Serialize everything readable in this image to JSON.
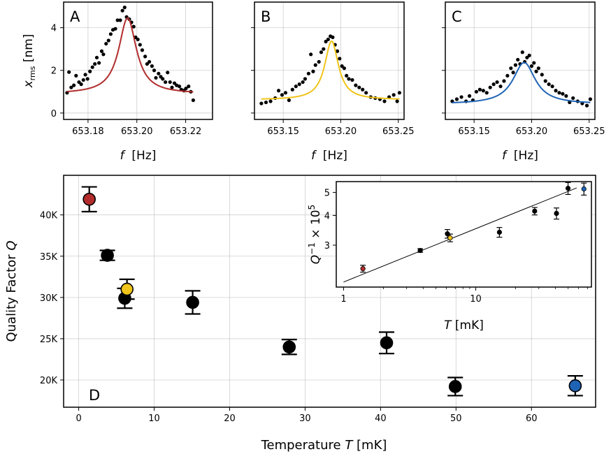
{
  "chart_data": [
    {
      "panel": "A",
      "type": "scatter",
      "panel_label": "A",
      "xlabel": "f  [Hz]",
      "ylabel": "x_rms [nm]",
      "xlim": [
        653.17,
        653.231
      ],
      "ylim": [
        -0.3,
        5.2
      ],
      "xticks": [
        653.18,
        653.2,
        653.22
      ],
      "xtick_labels": [
        "653.18",
        "653.20",
        "653.22"
      ],
      "yticks": [
        0,
        2,
        4
      ],
      "ytick_labels": [
        "0",
        "2",
        "4"
      ],
      "fit_color": "#b22c2c",
      "fit": {
        "x0": 653.1962,
        "gamma": 0.0088,
        "amp": 3.55,
        "offset": 0.9
      },
      "points": [
        [
          653.1714,
          0.95
        ],
        [
          653.1722,
          1.92
        ],
        [
          653.1731,
          1.2
        ],
        [
          653.1742,
          1.3
        ],
        [
          653.1751,
          1.75
        ],
        [
          653.1763,
          1.45
        ],
        [
          653.1772,
          1.35
        ],
        [
          653.1781,
          1.55
        ],
        [
          653.1789,
          1.8
        ],
        [
          653.1798,
          1.6
        ],
        [
          653.1808,
          1.95
        ],
        [
          653.1818,
          2.15
        ],
        [
          653.1828,
          2.3
        ],
        [
          653.1836,
          2.6
        ],
        [
          653.1845,
          2.35
        ],
        [
          653.1856,
          2.9
        ],
        [
          653.1863,
          2.75
        ],
        [
          653.1874,
          3.25
        ],
        [
          653.1884,
          3.4
        ],
        [
          653.1893,
          3.7
        ],
        [
          653.1902,
          3.9
        ],
        [
          653.1912,
          3.95
        ],
        [
          653.1921,
          4.35
        ],
        [
          653.1932,
          4.35
        ],
        [
          653.1941,
          4.8
        ],
        [
          653.195,
          4.95
        ],
        [
          653.1958,
          4.5
        ],
        [
          653.1969,
          4.4
        ],
        [
          653.1978,
          4.25
        ],
        [
          653.1987,
          4.05
        ],
        [
          653.1995,
          3.55
        ],
        [
          653.2004,
          3.45
        ],
        [
          653.2013,
          3.2
        ],
        [
          653.2022,
          2.95
        ],
        [
          653.2034,
          2.65
        ],
        [
          653.2042,
          2.3
        ],
        [
          653.2051,
          2.4
        ],
        [
          653.2062,
          2.2
        ],
        [
          653.2071,
          2.0
        ],
        [
          653.2078,
          1.65
        ],
        [
          653.2089,
          1.85
        ],
        [
          653.2098,
          1.7
        ],
        [
          653.2106,
          1.6
        ],
        [
          653.2117,
          1.45
        ],
        [
          653.2126,
          1.9
        ],
        [
          653.2136,
          1.45
        ],
        [
          653.2144,
          1.2
        ],
        [
          653.2154,
          1.4
        ],
        [
          653.2163,
          1.3
        ],
        [
          653.2174,
          1.25
        ],
        [
          653.2182,
          1.1
        ],
        [
          653.2193,
          1.05
        ],
        [
          653.2201,
          1.15
        ],
        [
          653.2212,
          1.25
        ],
        [
          653.2221,
          1.0
        ],
        [
          653.2231,
          0.6
        ]
      ]
    },
    {
      "panel": "B",
      "type": "scatter",
      "panel_label": "B",
      "xlabel": "f  [Hz]",
      "xlim": [
        653.125,
        653.255
      ],
      "ylim": [
        -0.3,
        5.2
      ],
      "xticks": [
        653.15,
        653.2,
        653.25
      ],
      "xtick_labels": [
        "653.15",
        "653.20",
        "653.25"
      ],
      "yticks": [
        0,
        2,
        4
      ],
      "fit_color": "#f0c419",
      "fit": {
        "x0": 653.192,
        "gamma": 0.0145,
        "amp": 2.75,
        "offset": 0.62
      },
      "points": [
        [
          653.131,
          0.45
        ],
        [
          653.135,
          0.5
        ],
        [
          653.139,
          0.55
        ],
        [
          653.143,
          0.7
        ],
        [
          653.146,
          1.05
        ],
        [
          653.149,
          0.85
        ],
        [
          653.152,
          0.95
        ],
        [
          653.155,
          0.6
        ],
        [
          653.158,
          1.1
        ],
        [
          653.161,
          1.25
        ],
        [
          653.164,
          1.35
        ],
        [
          653.167,
          1.45
        ],
        [
          653.169,
          1.6
        ],
        [
          653.172,
          1.85
        ],
        [
          653.174,
          2.75
        ],
        [
          653.176,
          1.95
        ],
        [
          653.178,
          2.25
        ],
        [
          653.181,
          2.4
        ],
        [
          653.183,
          2.85
        ],
        [
          653.185,
          3.0
        ],
        [
          653.187,
          3.35
        ],
        [
          653.189,
          3.45
        ],
        [
          653.191,
          3.6
        ],
        [
          653.193,
          3.55
        ],
        [
          653.195,
          3.2
        ],
        [
          653.197,
          2.9
        ],
        [
          653.199,
          2.55
        ],
        [
          653.201,
          2.2
        ],
        [
          653.203,
          2.1
        ],
        [
          653.205,
          1.75
        ],
        [
          653.207,
          1.6
        ],
        [
          653.21,
          1.55
        ],
        [
          653.213,
          1.3
        ],
        [
          653.216,
          1.2
        ],
        [
          653.219,
          1.1
        ],
        [
          653.222,
          0.95
        ],
        [
          653.226,
          0.75
        ],
        [
          653.23,
          0.7
        ],
        [
          653.234,
          0.65
        ],
        [
          653.238,
          0.55
        ],
        [
          653.242,
          0.75
        ],
        [
          653.246,
          0.85
        ],
        [
          653.249,
          0.55
        ],
        [
          653.251,
          0.95
        ]
      ]
    },
    {
      "panel": "C",
      "type": "scatter",
      "panel_label": "C",
      "xlabel": "f  [Hz]",
      "xlim": [
        653.125,
        653.255
      ],
      "ylim": [
        -0.3,
        5.2
      ],
      "xticks": [
        653.15,
        653.2,
        653.25
      ],
      "xtick_labels": [
        "653.15",
        "653.20",
        "653.25"
      ],
      "yticks": [
        0,
        2,
        4
      ],
      "fit_color": "#1f64b4",
      "fit": {
        "x0": 653.1935,
        "gamma": 0.0235,
        "amp": 1.95,
        "offset": 0.42
      },
      "points": [
        [
          653.131,
          0.55
        ],
        [
          653.135,
          0.65
        ],
        [
          653.139,
          0.75
        ],
        [
          653.143,
          0.55
        ],
        [
          653.146,
          0.8
        ],
        [
          653.149,
          0.6
        ],
        [
          653.152,
          1.0
        ],
        [
          653.155,
          1.1
        ],
        [
          653.158,
          1.05
        ],
        [
          653.161,
          0.95
        ],
        [
          653.164,
          1.2
        ],
        [
          653.167,
          1.35
        ],
        [
          653.17,
          1.45
        ],
        [
          653.173,
          1.25
        ],
        [
          653.176,
          1.5
        ],
        [
          653.179,
          1.75
        ],
        [
          653.182,
          2.1
        ],
        [
          653.184,
          1.9
        ],
        [
          653.186,
          2.25
        ],
        [
          653.188,
          2.5
        ],
        [
          653.19,
          2.3
        ],
        [
          653.192,
          2.85
        ],
        [
          653.194,
          2.4
        ],
        [
          653.196,
          2.6
        ],
        [
          653.198,
          2.7
        ],
        [
          653.2,
          2.2
        ],
        [
          653.202,
          2.35
        ],
        [
          653.204,
          1.95
        ],
        [
          653.206,
          2.1
        ],
        [
          653.209,
          1.8
        ],
        [
          653.212,
          1.5
        ],
        [
          653.215,
          1.35
        ],
        [
          653.218,
          1.25
        ],
        [
          653.221,
          1.05
        ],
        [
          653.224,
          0.95
        ],
        [
          653.227,
          0.9
        ],
        [
          653.23,
          0.8
        ],
        [
          653.233,
          0.5
        ],
        [
          653.236,
          0.7
        ],
        [
          653.24,
          0.55
        ],
        [
          653.244,
          0.45
        ],
        [
          653.248,
          0.35
        ],
        [
          653.251,
          0.65
        ]
      ]
    },
    {
      "panel": "D",
      "type": "scatter",
      "panel_label": "D",
      "xlabel": "Temperature T [mK]",
      "ylabel": "Quality Factor Q",
      "xlim": [
        -2,
        68.5
      ],
      "ylim": [
        16700,
        44800
      ],
      "xticks": [
        0,
        10,
        20,
        30,
        40,
        50,
        60
      ],
      "xtick_labels": [
        "0",
        "10",
        "20",
        "30",
        "40",
        "50",
        "60"
      ],
      "yticks": [
        20000,
        25000,
        30000,
        35000,
        40000
      ],
      "ytick_labels": [
        "20K",
        "25K",
        "30K",
        "35K",
        "40K"
      ],
      "grid": true,
      "points": [
        {
          "T": 1.4,
          "Q": 41900,
          "err": 1500,
          "color": "#b22c2c"
        },
        {
          "T": 3.8,
          "Q": 35100,
          "err": 600,
          "color": "#000000"
        },
        {
          "T": 6.1,
          "Q": 29900,
          "err": 1200,
          "color": "#000000"
        },
        {
          "T": 6.4,
          "Q": 31000,
          "err": 1200,
          "color": "#f0c419"
        },
        {
          "T": 15.1,
          "Q": 29400,
          "err": 1400,
          "color": "#000000"
        },
        {
          "T": 27.9,
          "Q": 24000,
          "err": 900,
          "color": "#000000"
        },
        {
          "T": 40.8,
          "Q": 24500,
          "err": 1300,
          "color": "#000000"
        },
        {
          "T": 49.9,
          "Q": 19200,
          "err": 1100,
          "color": "#000000"
        },
        {
          "T": 65.8,
          "Q": 19300,
          "err": 1200,
          "color": "#1f64b4"
        }
      ]
    },
    {
      "panel": "inset",
      "type": "scatter",
      "xscale": "log",
      "yscale": "log",
      "xlabel": "T [mK]",
      "ylabel": "Q^-1 × 10^5",
      "xlim": [
        0.88,
        75
      ],
      "ylim": [
        2.0,
        5.55
      ],
      "xticks": [
        1,
        10
      ],
      "xtick_labels": [
        "1",
        "10"
      ],
      "yticks": [
        3,
        4,
        5
      ],
      "ytick_labels": [
        "3",
        "4",
        "5"
      ],
      "fit_line": [
        [
          1.0,
          2.1
        ],
        [
          58.0,
          5.22
        ]
      ],
      "points": [
        {
          "T": 1.4,
          "y": 2.39,
          "err": 0.08,
          "color": "#b22c2c"
        },
        {
          "T": 3.8,
          "y": 2.85,
          "err": 0.05,
          "color": "#000000"
        },
        {
          "T": 6.1,
          "y": 3.35,
          "err": 0.14,
          "color": "#000000"
        },
        {
          "T": 6.4,
          "y": 3.22,
          "err": 0.12,
          "color": "#f0c419"
        },
        {
          "T": 15.1,
          "y": 3.4,
          "err": 0.16,
          "color": "#000000"
        },
        {
          "T": 27.9,
          "y": 4.17,
          "err": 0.15,
          "color": "#000000"
        },
        {
          "T": 40.8,
          "y": 4.08,
          "err": 0.22,
          "color": "#000000"
        },
        {
          "T": 49.9,
          "y": 5.2,
          "err": 0.3,
          "color": "#000000"
        },
        {
          "T": 65.8,
          "y": 5.17,
          "err": 0.3,
          "color": "#1f64b4"
        }
      ]
    }
  ]
}
